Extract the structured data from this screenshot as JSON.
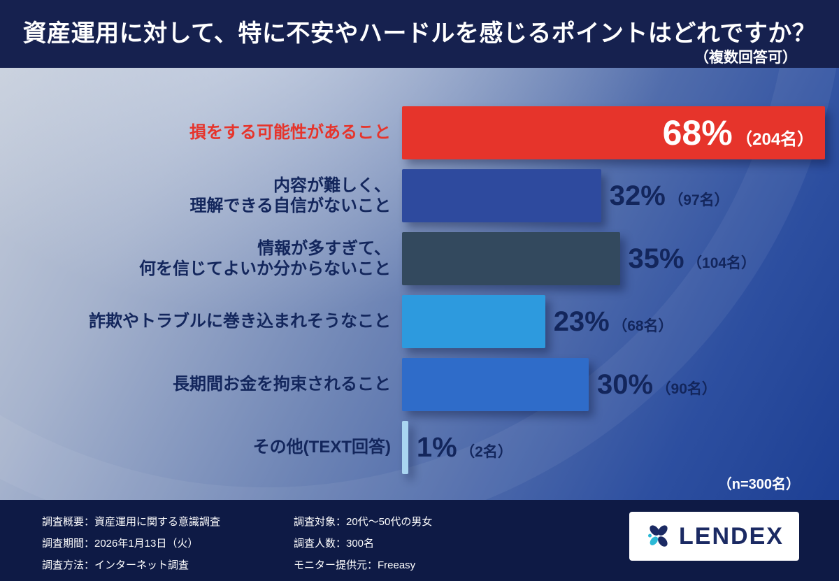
{
  "header": {
    "title": "資産運用に対して、特に不安やハードルを感じるポイントはどれですか？",
    "note": "（複数回答可）"
  },
  "chart_data": {
    "type": "bar",
    "orientation": "horizontal",
    "title": "資産運用に対して、特に不安やハードルを感じるポイントはどれですか？",
    "subtitle": "（複数回答可）",
    "sample_label": "（n=300名）",
    "xlim": [
      0,
      70
    ],
    "unit": "%",
    "bars": [
      {
        "label_lines": [
          "損をする可能性があること"
        ],
        "percent": 68,
        "value_label": "68%",
        "count_label": "（204名）",
        "color": "#e6342b",
        "label_color": "#e6342b",
        "value_inside": true
      },
      {
        "label_lines": [
          "内容が難しく、",
          "理解できる自信がないこと"
        ],
        "percent": 32,
        "value_label": "32%",
        "count_label": "（97名）",
        "color": "#2e4a9e",
        "value_inside": false
      },
      {
        "label_lines": [
          "情報が多すぎて、",
          "何を信じてよいか分からないこと"
        ],
        "percent": 35,
        "value_label": "35%",
        "count_label": "（104名）",
        "color": "#33495e",
        "value_inside": false
      },
      {
        "label_lines": [
          "詐欺やトラブルに巻き込まれそうなこと"
        ],
        "percent": 23,
        "value_label": "23%",
        "count_label": "（68名）",
        "color": "#2d9ade",
        "value_inside": false
      },
      {
        "label_lines": [
          "長期間お金を拘束されること"
        ],
        "percent": 30,
        "value_label": "30%",
        "count_label": "（90名）",
        "color": "#2f6cc9",
        "value_inside": false
      },
      {
        "label_lines": [
          "その他(TEXT回答)"
        ],
        "percent": 1,
        "value_label": "1%",
        "count_label": "（2名）",
        "color": "#a9d5f1",
        "value_inside": false
      }
    ]
  },
  "footer": {
    "col1": [
      "調査概要：資産運用に関する意識調査",
      "調査期間：2026年1月13日（火）",
      "調査方法：インターネット調査"
    ],
    "col2": [
      "調査対象：20代〜50代の男女",
      "調査人数：300名",
      "モニター提供元：Freeasy"
    ]
  },
  "logo": {
    "brand": "LENDEX"
  },
  "colors": {
    "header_bg": "#16214f",
    "footer_bg": "#0e1a45",
    "accent_red": "#e6342b",
    "label_navy": "#13265c"
  }
}
